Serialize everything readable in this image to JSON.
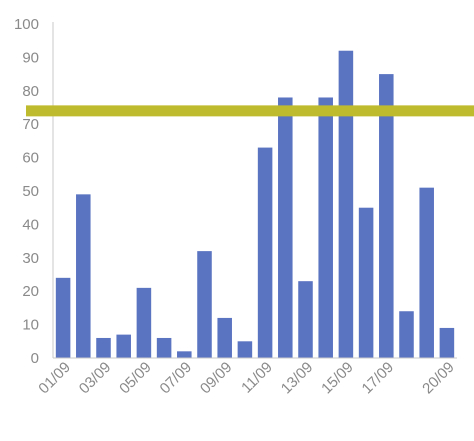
{
  "colors": {
    "bar": "#5B74C2",
    "target_line": "#BFBB2E",
    "axis": "#c8c8c8",
    "tick_text": "#8a8a8a"
  },
  "chart_data": {
    "type": "bar",
    "title": "",
    "xlabel": "",
    "ylabel": "",
    "ylim": [
      0,
      100
    ],
    "yticks": [
      0,
      10,
      20,
      30,
      40,
      50,
      60,
      70,
      80,
      90,
      100
    ],
    "grid": false,
    "categories": [
      "01/09",
      "02/09",
      "03/09",
      "04/09",
      "05/09",
      "06/09",
      "07/09",
      "08/09",
      "09/09",
      "10/09",
      "11/09",
      "12/09",
      "13/09",
      "14/09",
      "15/09",
      "16/09",
      "17/09",
      "18/09",
      "19/09",
      "20/09"
    ],
    "shown_tick_labels": [
      "01/09",
      "03/09",
      "05/09",
      "07/09",
      "09/09",
      "11/09",
      "13/09",
      "15/09",
      "17/09",
      "20/09"
    ],
    "values": [
      24,
      49,
      6,
      7,
      21,
      6,
      2,
      32,
      12,
      5,
      63,
      78,
      23,
      78,
      92,
      45,
      85,
      14,
      51,
      9
    ],
    "reference_line": {
      "value": 74
    }
  }
}
